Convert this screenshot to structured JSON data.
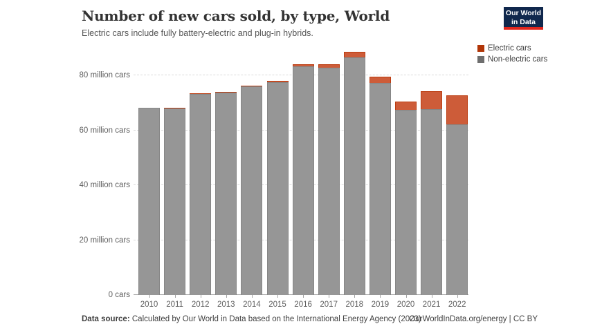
{
  "header": {
    "title": "Number of new cars sold, by type, World",
    "subtitle": "Electric cars include fully battery-electric and plug-in hybrids."
  },
  "logo": {
    "line1": "Our World",
    "line2": "in Data"
  },
  "legend": [
    {
      "label": "Electric cars",
      "color": "#b13507"
    },
    {
      "label": "Non-electric cars",
      "color": "#6e6e6e"
    }
  ],
  "footer": {
    "source_label": "Data source:",
    "source_text": " Calculated by Our World in Data based on the International Energy Agency (2023)",
    "link_text": "OurWorldInData.org/energy | CC BY"
  },
  "colors": {
    "electric_bar": "#cd5c39",
    "electric_edge": "#bb3c10",
    "nonelectric_bar": "#969696",
    "logo_bg": "#10284d",
    "logo_stripe": "#e1261c"
  },
  "chart_data": {
    "type": "bar",
    "stacked": true,
    "title": "Number of new cars sold, by type, World",
    "xlabel": "",
    "ylabel": "",
    "unit": "million cars",
    "categories": [
      "2010",
      "2011",
      "2012",
      "2013",
      "2014",
      "2015",
      "2016",
      "2017",
      "2018",
      "2019",
      "2020",
      "2021",
      "2022"
    ],
    "series": [
      {
        "name": "Non-electric cars",
        "values": [
          68.3,
          68.1,
          73.2,
          73.8,
          76.1,
          77.5,
          83.5,
          82.9,
          86.7,
          77.3,
          67.4,
          67.7,
          62.3
        ]
      },
      {
        "name": "Electric cars",
        "values": [
          0.01,
          0.05,
          0.13,
          0.2,
          0.32,
          0.55,
          0.75,
          1.19,
          2.09,
          2.27,
          3.1,
          6.6,
          10.5
        ]
      }
    ],
    "yticks": [
      {
        "value": 0,
        "label": "0 cars"
      },
      {
        "value": 20,
        "label": "20 million cars"
      },
      {
        "value": 40,
        "label": "40 million cars"
      },
      {
        "value": 60,
        "label": "60 million cars"
      },
      {
        "value": 80,
        "label": "80 million cars"
      }
    ],
    "ylim": [
      0,
      90
    ],
    "grid": "dashed-horizontal",
    "legend_position": "top-right"
  }
}
